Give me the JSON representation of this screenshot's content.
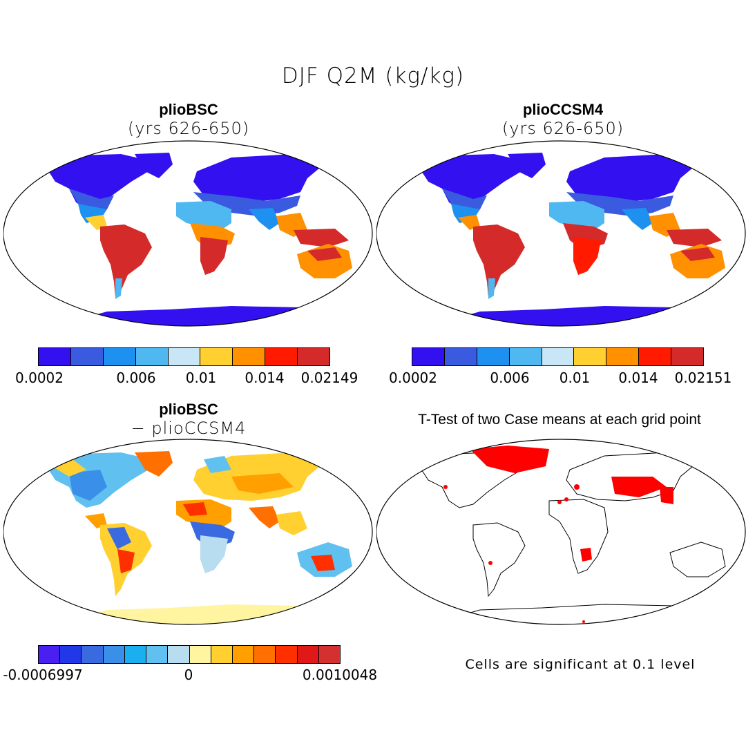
{
  "title": "DJF Q2M (kg/kg)",
  "panels": {
    "top_left": {
      "title": "plioBSC",
      "subtitle": "(yrs 626-650)"
    },
    "top_right": {
      "title": "plioCCSM4",
      "subtitle": "(yrs 626-650)"
    },
    "bottom_left": {
      "title": "plioBSC",
      "subtitle": "− plioCCSM4"
    },
    "bottom_right": {
      "title": "T-Test of two Case means at each grid point",
      "note": "Cells are significant at 0.1 level"
    }
  },
  "colorbars": {
    "top_left": {
      "colors": [
        "#3310f0",
        "#3a5ae0",
        "#1e90f0",
        "#50b8f0",
        "#c8e6f5",
        "#ffd030",
        "#ff9000",
        "#ff1a00",
        "#d42a2a"
      ],
      "labels": [
        "0.0002",
        "0.006",
        "0.01",
        "0.014",
        "0.02149"
      ]
    },
    "top_right": {
      "colors": [
        "#3310f0",
        "#3a5ae0",
        "#1e90f0",
        "#50b8f0",
        "#c8e6f5",
        "#ffd030",
        "#ff9000",
        "#ff1a00",
        "#d42a2a"
      ],
      "labels": [
        "0.0002",
        "0.006",
        "0.01",
        "0.014",
        "0.02151"
      ]
    },
    "bottom_left": {
      "colors": [
        "#4a20f0",
        "#2038e8",
        "#3a6ae0",
        "#3a90e8",
        "#1ab0f0",
        "#60c0f0",
        "#b8dcf0",
        "#fff5a0",
        "#ffd030",
        "#ffa000",
        "#ff7000",
        "#ff3000",
        "#e01818",
        "#d43030"
      ],
      "labels": [
        "-0.0006997",
        "0",
        "0.0010048"
      ]
    }
  },
  "map_colors": {
    "ice": "#3310f0",
    "cold": "#3a5ae0",
    "cool": "#1e90f0",
    "mild": "#50b8f0",
    "warm": "#ffd030",
    "hot": "#ff9000",
    "humid": "#d42a2a",
    "significant": "#ff0000",
    "diff_pos": "#ffa000",
    "diff_neg": "#3a90e8",
    "diff_zero": "#fff5a0"
  }
}
